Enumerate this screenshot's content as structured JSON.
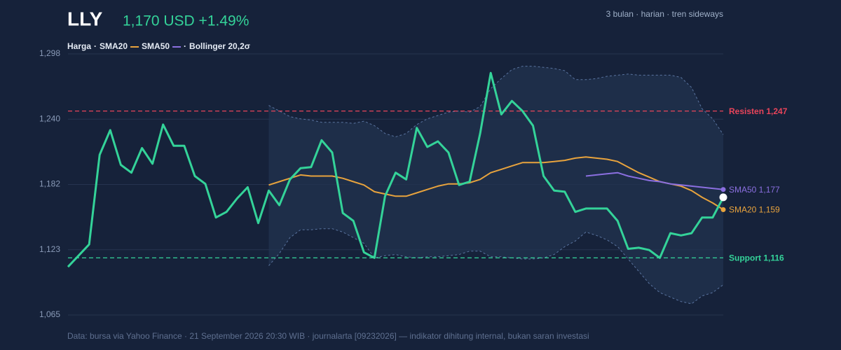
{
  "chart_data": {
    "type": "line",
    "title": "LLY",
    "subtitle": "1,170 USD +1.49%",
    "note": "3 bulan · harian · tren sideways",
    "footer": "Data: bursa via Yahoo Finance · 21 September 2026 20:30 WIB · journalarta [09232026] — indikator dihitung internal, bukan saran investasi",
    "ylim": [
      1065,
      1298
    ],
    "yticks": [
      {
        "value": 1065,
        "label": "1,065"
      },
      {
        "value": 1123.25,
        "label": "1,123"
      },
      {
        "value": 1181.5,
        "label": "1,182"
      },
      {
        "value": 1239.75,
        "label": "1,240"
      },
      {
        "value": 1298,
        "label": "1,298"
      }
    ],
    "grid": true,
    "series": [
      {
        "name": "Harga",
        "color": "#34d399",
        "values": [
          1108,
          1118,
          1128,
          1208,
          1230,
          1199,
          1192,
          1214,
          1200,
          1235,
          1216,
          1216,
          1189,
          1182,
          1152,
          1157,
          1169,
          1179,
          1147,
          1176,
          1163,
          1186,
          1196,
          1197,
          1221,
          1210,
          1156,
          1149,
          1121,
          1116,
          1171,
          1192,
          1186,
          1232,
          1215,
          1220,
          1210,
          1181,
          1184,
          1227,
          1281,
          1244,
          1256,
          1247,
          1234,
          1189,
          1176,
          1175,
          1157,
          1160,
          1160,
          1160,
          1149,
          1124,
          1125,
          1123,
          1116,
          1138,
          1136,
          1138,
          1152,
          1152,
          1170
        ]
      },
      {
        "name": "SMA20",
        "color": "#e8a33d",
        "end_label": "SMA20 1,159",
        "values": [
          null,
          null,
          null,
          null,
          null,
          null,
          null,
          null,
          null,
          null,
          null,
          null,
          null,
          null,
          null,
          null,
          null,
          null,
          null,
          1181,
          1184,
          1187,
          1190,
          1189,
          1189,
          1189,
          1187,
          1184,
          1181,
          1175,
          1173,
          1171,
          1171,
          1174,
          1177,
          1180,
          1182,
          1182,
          1183,
          1186,
          1192,
          1195,
          1198,
          1201,
          1201,
          1201,
          1202,
          1203,
          1205,
          1206,
          1205,
          1204,
          1202,
          1197,
          1192,
          1188,
          1184,
          1182,
          1180,
          1176,
          1170,
          1165,
          1159
        ]
      },
      {
        "name": "SMA50",
        "color": "#8b6fe0",
        "end_label": "SMA50 1,177",
        "values": [
          null,
          null,
          null,
          null,
          null,
          null,
          null,
          null,
          null,
          null,
          null,
          null,
          null,
          null,
          null,
          null,
          null,
          null,
          null,
          null,
          null,
          null,
          null,
          null,
          null,
          null,
          null,
          null,
          null,
          null,
          null,
          null,
          null,
          null,
          null,
          null,
          null,
          null,
          null,
          null,
          null,
          null,
          null,
          null,
          null,
          null,
          null,
          null,
          null,
          1189,
          1190,
          1191,
          1192,
          1189,
          1187,
          1185,
          1184,
          1182,
          1181,
          1180,
          1179,
          1178,
          1177
        ]
      },
      {
        "name": "Bollinger 20,2σ",
        "color": "#5a74a0",
        "upper": [
          null,
          null,
          null,
          null,
          null,
          null,
          null,
          null,
          null,
          null,
          null,
          null,
          null,
          null,
          null,
          null,
          null,
          null,
          null,
          1252,
          1247,
          1242,
          1240,
          1239,
          1237,
          1237,
          1237,
          1236,
          1238,
          1234,
          1227,
          1224,
          1227,
          1235,
          1240,
          1243,
          1246,
          1247,
          1246,
          1251,
          1267,
          1276,
          1284,
          1287,
          1287,
          1286,
          1285,
          1283,
          1275,
          1275,
          1276,
          1278,
          1279,
          1280,
          1279,
          1279,
          1279,
          1279,
          1277,
          1268,
          1249,
          1240,
          1226
        ],
        "lower": [
          null,
          null,
          null,
          null,
          null,
          null,
          null,
          null,
          null,
          null,
          null,
          null,
          null,
          null,
          null,
          null,
          null,
          null,
          null,
          1109,
          1120,
          1134,
          1141,
          1141,
          1142,
          1142,
          1139,
          1134,
          1129,
          1116,
          1118,
          1119,
          1117,
          1116,
          1117,
          1117,
          1118,
          1119,
          1122,
          1122,
          1117,
          1117,
          1116,
          1115,
          1115,
          1116,
          1119,
          1126,
          1131,
          1139,
          1136,
          1132,
          1126,
          1115,
          1104,
          1093,
          1085,
          1081,
          1077,
          1075,
          1082,
          1085,
          1092
        ]
      }
    ],
    "hlines": [
      {
        "label": "Resisten 1,247",
        "value": 1247,
        "color": "#e8445a"
      },
      {
        "label": "Support 1,116",
        "value": 1116,
        "color": "#34d399"
      }
    ]
  }
}
